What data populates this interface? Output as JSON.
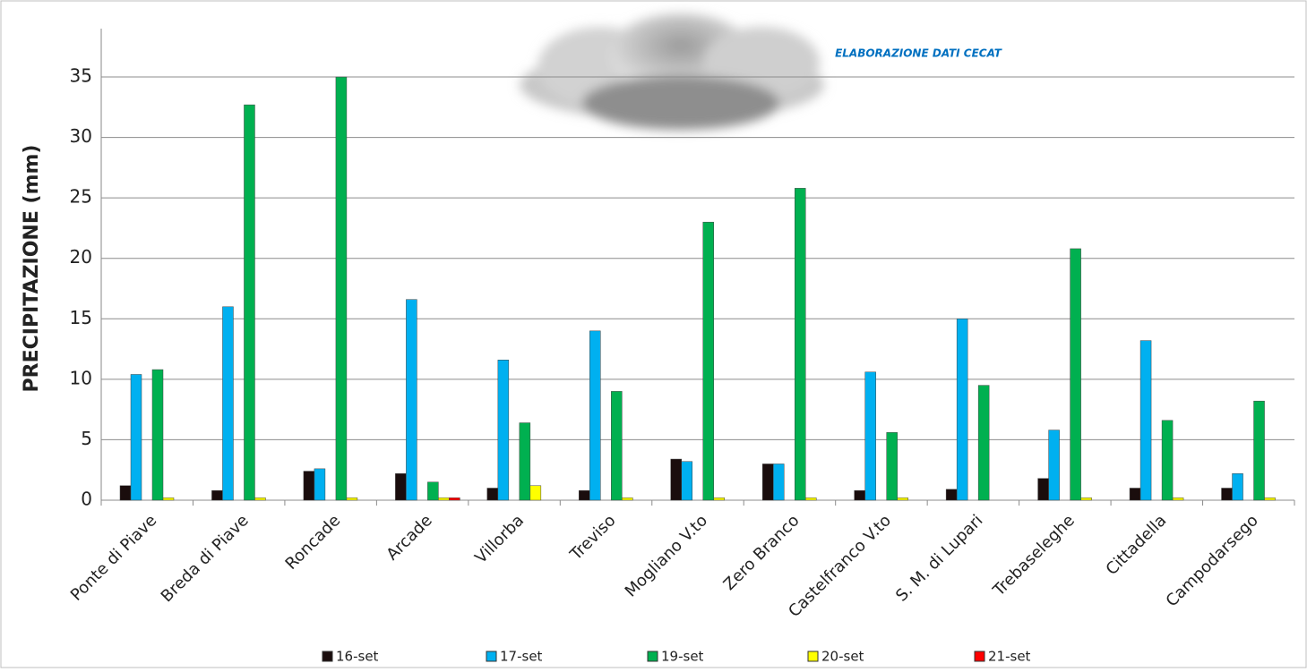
{
  "chart_data": {
    "type": "bar",
    "y_label": "PRECIPITAZIONE (mm)",
    "annotation": "ELABORAZIONE DATI CECAT",
    "categories": [
      "Ponte di Piave",
      "Breda di Piave",
      "Roncade",
      "Arcade",
      "Villorba",
      "Treviso",
      "Mogliano V.to",
      "Zero Branco",
      "Castelfranco V.to",
      "S. M. di Lupari",
      "Trebaseleghe",
      "Cittadella",
      "Campodarsego"
    ],
    "series": [
      {
        "name": "16-set",
        "color": "#1a0d0d",
        "values": [
          1.2,
          0.8,
          2.4,
          2.2,
          1.0,
          0.8,
          3.4,
          3.0,
          0.8,
          0.9,
          1.8,
          1.0,
          1.0
        ]
      },
      {
        "name": "17-set",
        "color": "#00b0f0",
        "values": [
          10.4,
          16.0,
          2.6,
          16.6,
          11.6,
          14.0,
          3.2,
          3.0,
          10.6,
          15.0,
          5.8,
          13.2,
          2.2
        ]
      },
      {
        "name": "19-set",
        "color": "#00b050",
        "values": [
          10.8,
          32.7,
          35.0,
          1.5,
          6.4,
          9.0,
          23.0,
          25.8,
          5.6,
          9.5,
          20.8,
          6.6,
          8.2
        ]
      },
      {
        "name": "20-set",
        "color": "#ffff00",
        "values": [
          0.2,
          0.2,
          0.2,
          0.2,
          1.2,
          0.2,
          0.2,
          0.2,
          0.2,
          0,
          0.2,
          0.2,
          0.2
        ]
      },
      {
        "name": "21-set",
        "color": "#ff0000",
        "values": [
          0,
          0,
          0,
          0.2,
          0,
          0,
          0,
          0,
          0,
          0,
          0,
          0,
          0
        ]
      }
    ],
    "ylim": [
      0,
      39
    ],
    "yticks": [
      0,
      5,
      10,
      15,
      20,
      25,
      30,
      35
    ],
    "grid": true,
    "legend": "bottom"
  }
}
